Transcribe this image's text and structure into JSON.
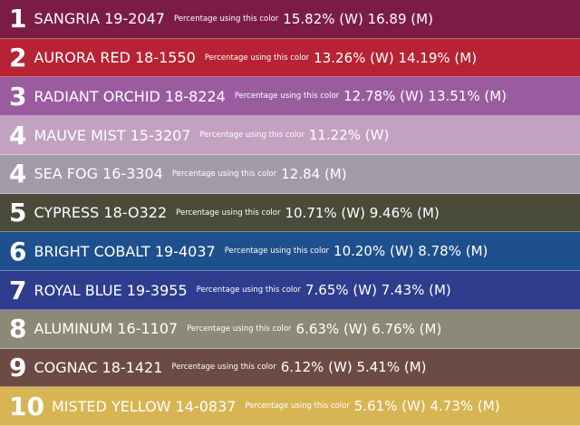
{
  "rows": [
    {
      "rank": "1",
      "name": "SANGRIA 19-2047",
      "label": "Percentage using this color",
      "stats": "15.82% (W) 16.89 (M)",
      "color": "#7b1c47"
    },
    {
      "rank": "2",
      "name": "AURORA RED 18-1550",
      "label": "Percentage using this color",
      "stats": "13.26% (W) 14.19% (M)",
      "color": "#b72334"
    },
    {
      "rank": "3",
      "name": "RADIANT ORCHID 18-8224",
      "label": "Percentage using this color",
      "stats": "12.78% (W) 13.51% (M)",
      "color": "#9b5c9f"
    },
    {
      "rank": "4",
      "name": "MAUVE MIST 15-3207",
      "label": "Percentage using this color",
      "stats": "11.22% (W)",
      "color": "#c2a2c0"
    },
    {
      "rank": "4",
      "name": "SEA FOG 16-3304",
      "label": "Percentage using this color",
      "stats": "12.84 (M)",
      "color": "#a29aa8"
    },
    {
      "rank": "5",
      "name": "CYPRESS 18-O322",
      "label": "Percentage using this color",
      "stats": "10.71% (W) 9.46% (M)",
      "color": "#4a4b3b"
    },
    {
      "rank": "6",
      "name": "BRIGHT COBALT 19-4037",
      "label": "Percentage using this color",
      "stats": "10.20% (W) 8.78% (M)",
      "color": "#1e508d"
    },
    {
      "rank": "7",
      "name": "ROYAL BLUE 19-3955",
      "label": "Percentage using this color",
      "stats": "7.65% (W) 7.43% (M)",
      "color": "#2f3d8e"
    },
    {
      "rank": "8",
      "name": "ALUMINUM 16-1107",
      "label": "Percentage using this color",
      "stats": "6.63% (W) 6.76% (M)",
      "color": "#8b8977"
    },
    {
      "rank": "9",
      "name": "COGNAC 18-1421",
      "label": "Percentage using this color",
      "stats": "6.12% (W) 5.41% (M)",
      "color": "#6d4b45"
    },
    {
      "rank": "10",
      "name": "MISTED YELLOW 14-0837",
      "label": "Percentage using this color",
      "stats": "5.61% (W) 4.73% (M)",
      "color": "#d8b553"
    }
  ]
}
